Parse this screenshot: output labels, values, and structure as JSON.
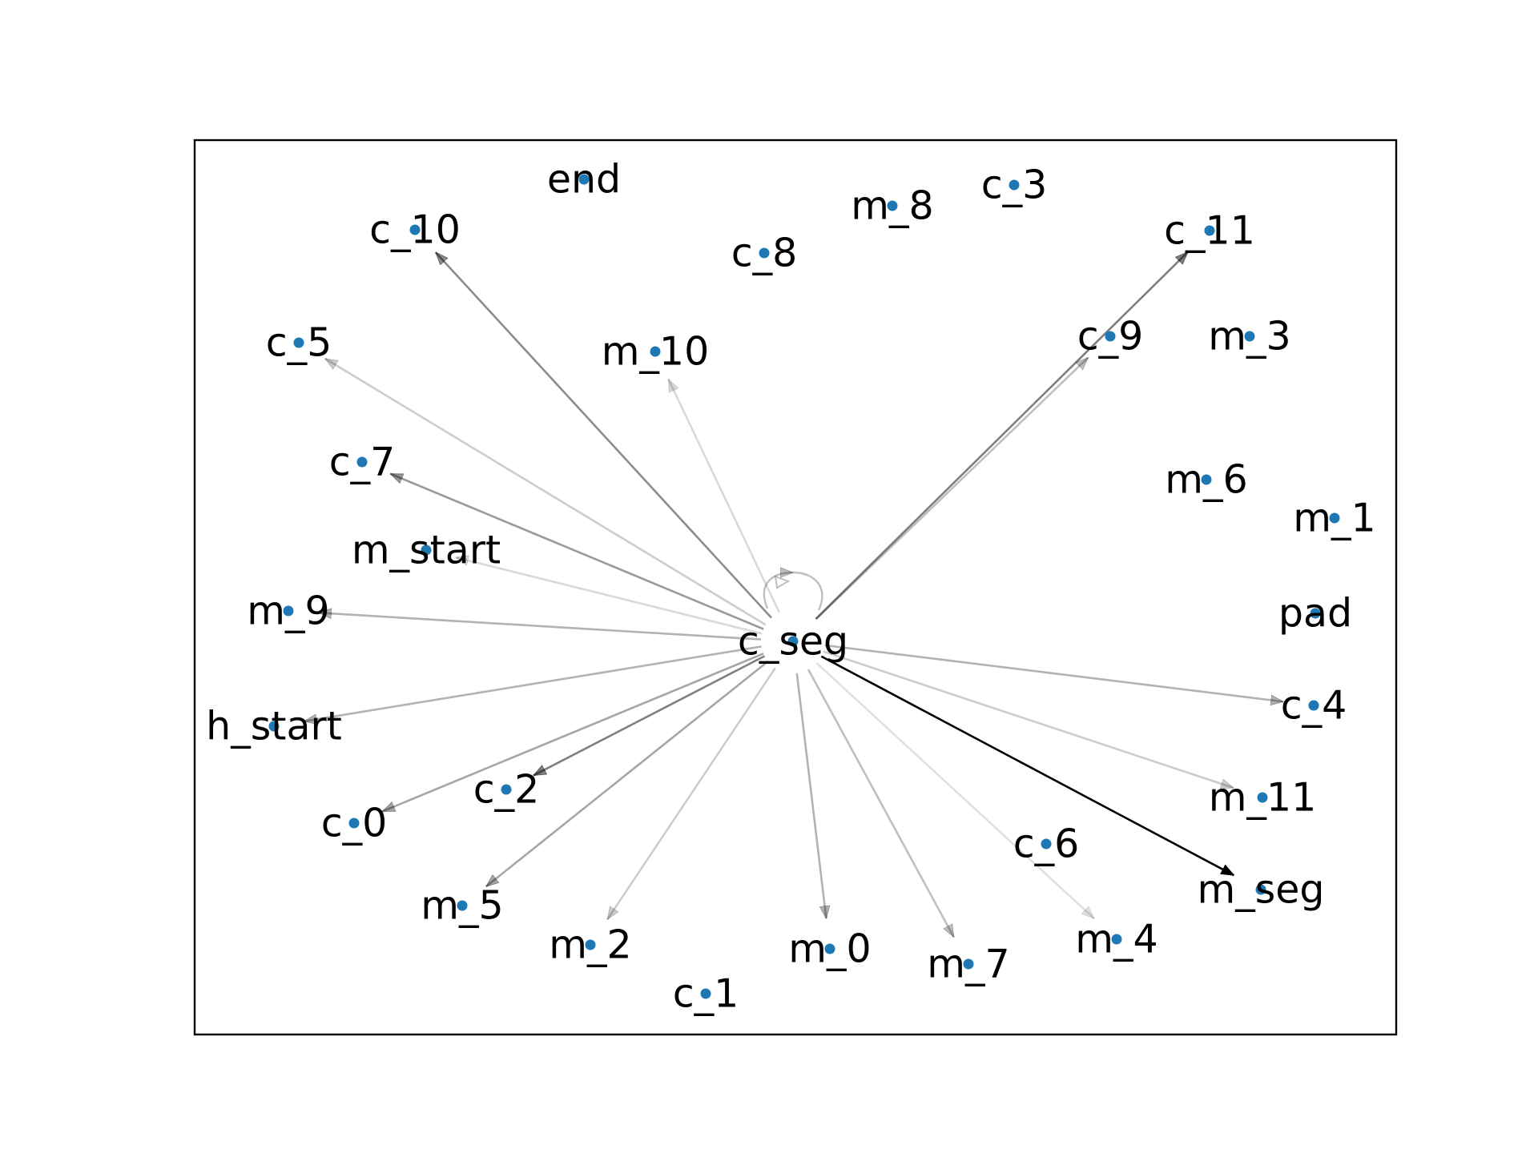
{
  "colors": {
    "node": "#1f77b4",
    "edge": "#000000",
    "frame": "#000000",
    "background": "#ffffff"
  },
  "graph": {
    "center": "c_seg",
    "nodes": [
      {
        "id": "end",
        "label": "end"
      },
      {
        "id": "c_10",
        "label": "c_10"
      },
      {
        "id": "c_8",
        "label": "c_8"
      },
      {
        "id": "m_8",
        "label": "m_8"
      },
      {
        "id": "c_3",
        "label": "c_3"
      },
      {
        "id": "c_11",
        "label": "c_11"
      },
      {
        "id": "c_5",
        "label": "c_5"
      },
      {
        "id": "m_10",
        "label": "m_10"
      },
      {
        "id": "c_9",
        "label": "c_9"
      },
      {
        "id": "m_3",
        "label": "m_3"
      },
      {
        "id": "c_7",
        "label": "c_7"
      },
      {
        "id": "m_6",
        "label": "m_6"
      },
      {
        "id": "m_1",
        "label": "m_1"
      },
      {
        "id": "m_start",
        "label": "m_start"
      },
      {
        "id": "m_9",
        "label": "m_9"
      },
      {
        "id": "pad",
        "label": "pad"
      },
      {
        "id": "c_seg",
        "label": "c_seg"
      },
      {
        "id": "c_4",
        "label": "c_4"
      },
      {
        "id": "h_start",
        "label": "h_start"
      },
      {
        "id": "c_2",
        "label": "c_2"
      },
      {
        "id": "m_11",
        "label": "m_11"
      },
      {
        "id": "c_0",
        "label": "c_0"
      },
      {
        "id": "c_6",
        "label": "c_6"
      },
      {
        "id": "m_seg",
        "label": "m_seg"
      },
      {
        "id": "m_5",
        "label": "m_5"
      },
      {
        "id": "m_2",
        "label": "m_2"
      },
      {
        "id": "m_0",
        "label": "m_0"
      },
      {
        "id": "m_7",
        "label": "m_7"
      },
      {
        "id": "m_4",
        "label": "m_4"
      },
      {
        "id": "c_1",
        "label": "c_1"
      }
    ],
    "edges": [
      {
        "source": "c_seg",
        "target": "c_seg",
        "weight": 0.25
      },
      {
        "source": "c_seg",
        "target": "c_10",
        "weight": 0.45
      },
      {
        "source": "c_seg",
        "target": "c_5",
        "weight": 0.2
      },
      {
        "source": "c_seg",
        "target": "m_10",
        "weight": 0.15
      },
      {
        "source": "c_seg",
        "target": "c_11",
        "weight": 0.5
      },
      {
        "source": "c_seg",
        "target": "c_9",
        "weight": 0.25
      },
      {
        "source": "c_seg",
        "target": "c_7",
        "weight": 0.4
      },
      {
        "source": "c_seg",
        "target": "m_start",
        "weight": 0.15
      },
      {
        "source": "c_seg",
        "target": "m_9",
        "weight": 0.3
      },
      {
        "source": "c_seg",
        "target": "h_start",
        "weight": 0.3
      },
      {
        "source": "c_seg",
        "target": "c_0",
        "weight": 0.35
      },
      {
        "source": "c_seg",
        "target": "c_2",
        "weight": 0.5
      },
      {
        "source": "c_seg",
        "target": "m_5",
        "weight": 0.35
      },
      {
        "source": "c_seg",
        "target": "m_2",
        "weight": 0.2
      },
      {
        "source": "c_seg",
        "target": "m_0",
        "weight": 0.3
      },
      {
        "source": "c_seg",
        "target": "m_7",
        "weight": 0.25
      },
      {
        "source": "c_seg",
        "target": "m_4",
        "weight": 0.12
      },
      {
        "source": "c_seg",
        "target": "m_seg",
        "weight": 1.0
      },
      {
        "source": "c_seg",
        "target": "m_11",
        "weight": 0.2
      },
      {
        "source": "c_seg",
        "target": "c_4",
        "weight": 0.3
      }
    ]
  }
}
